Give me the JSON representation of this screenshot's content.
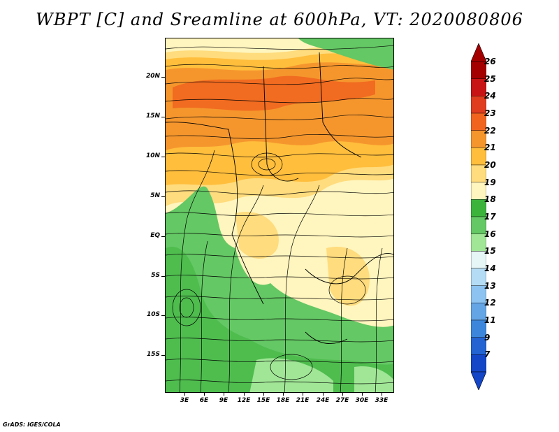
{
  "title": "WBPT [C] and Sreamline at 600hPa, VT: 2020080806",
  "footer": "GrADS: IGES/COLA",
  "map": {
    "lat_labels": [
      "20N",
      "15N",
      "10N",
      "5N",
      "EQ",
      "5S",
      "10S",
      "15S"
    ],
    "lon_labels": [
      "3E",
      "6E",
      "9E",
      "12E",
      "15E",
      "18E",
      "21E",
      "24E",
      "27E",
      "30E",
      "33E"
    ]
  },
  "colorbar": {
    "labels": [
      "26",
      "25",
      "24",
      "23",
      "22",
      "21",
      "20",
      "19",
      "18",
      "17",
      "16",
      "15",
      "14",
      "13",
      "12",
      "11",
      "9",
      "7"
    ],
    "colors": [
      "#a50000",
      "#c81414",
      "#e03c1e",
      "#f0641e",
      "#f5962d",
      "#ffbe3c",
      "#ffdc7d",
      "#fff5be",
      "#3cb43c",
      "#64c864",
      "#a0e696",
      "#e6f5f5",
      "#b4dcf5",
      "#8cc3f0",
      "#64a5e6",
      "#3c87dc",
      "#2364d2",
      "#1446c8"
    ],
    "top_arrow_color": "#a50000",
    "bottom_arrow_color": "#1446c8"
  }
}
